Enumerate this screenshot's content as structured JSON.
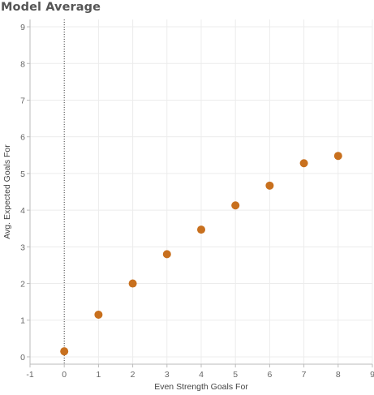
{
  "chart_data": {
    "type": "scatter",
    "title": "Model Average",
    "xlabel": "Even Strength Goals For",
    "ylabel": "Avg. Expected Goals For",
    "xlim": [
      -1,
      9
    ],
    "ylim": [
      -0.2,
      9.2
    ],
    "x_ticks": [
      "-1",
      "0",
      "1",
      "2",
      "3",
      "4",
      "5",
      "6",
      "7",
      "8",
      "9"
    ],
    "y_ticks": [
      "0",
      "1",
      "2",
      "3",
      "4",
      "5",
      "6",
      "7",
      "8",
      "9"
    ],
    "grid": true,
    "zero_reference_line": true,
    "points": [
      {
        "x": 0,
        "y": 0.15
      },
      {
        "x": 1,
        "y": 1.15
      },
      {
        "x": 2,
        "y": 2.0
      },
      {
        "x": 3,
        "y": 2.8
      },
      {
        "x": 4,
        "y": 3.47
      },
      {
        "x": 5,
        "y": 4.13
      },
      {
        "x": 6,
        "y": 4.67
      },
      {
        "x": 7,
        "y": 5.28
      },
      {
        "x": 8,
        "y": 5.48
      }
    ],
    "marker_color": "#C8701E"
  }
}
